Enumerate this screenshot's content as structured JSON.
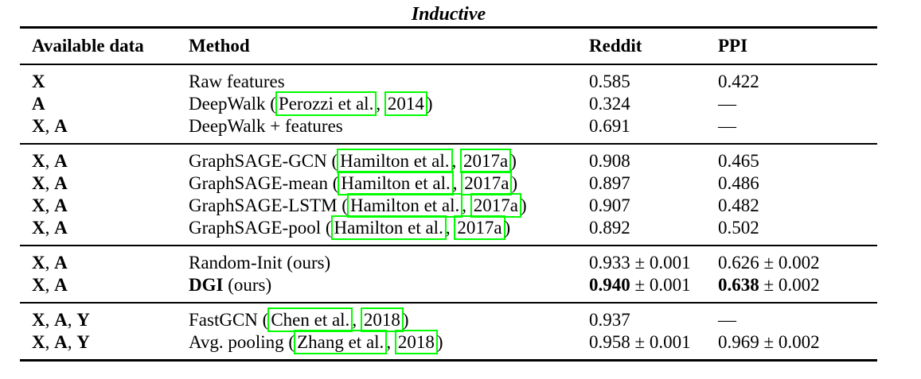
{
  "title": "Inductive",
  "colors": {
    "citation_box": "#00ff00",
    "rule": "#000000"
  },
  "header": {
    "columns": [
      "Available data",
      "Method",
      "Reddit",
      "PPI"
    ]
  },
  "groups": [
    {
      "rows": [
        {
          "cells": [
            {
              "segs": [
                {
                  "t": "bold",
                  "v": "X"
                }
              ]
            },
            {
              "segs": [
                {
                  "t": "text",
                  "v": "Raw features"
                }
              ]
            },
            {
              "segs": [
                {
                  "t": "text",
                  "v": "0.585"
                }
              ]
            },
            {
              "segs": [
                {
                  "t": "text",
                  "v": "0.422"
                }
              ]
            }
          ]
        },
        {
          "cells": [
            {
              "segs": [
                {
                  "t": "bold",
                  "v": "A"
                }
              ]
            },
            {
              "segs": [
                {
                  "t": "text",
                  "v": "DeepWalk ("
                },
                {
                  "t": "cite",
                  "v": "Perozzi et al."
                },
                {
                  "t": "text",
                  "v": ", "
                },
                {
                  "t": "cite",
                  "v": "2014"
                },
                {
                  "t": "text",
                  "v": ")"
                }
              ]
            },
            {
              "segs": [
                {
                  "t": "text",
                  "v": "0.324"
                }
              ]
            },
            {
              "segs": [
                {
                  "t": "text",
                  "v": "—"
                }
              ]
            }
          ]
        },
        {
          "cells": [
            {
              "segs": [
                {
                  "t": "bold",
                  "v": "X"
                },
                {
                  "t": "text",
                  "v": ", "
                },
                {
                  "t": "bold",
                  "v": "A"
                }
              ]
            },
            {
              "segs": [
                {
                  "t": "text",
                  "v": "DeepWalk + features"
                }
              ]
            },
            {
              "segs": [
                {
                  "t": "text",
                  "v": "0.691"
                }
              ]
            },
            {
              "segs": [
                {
                  "t": "text",
                  "v": "—"
                }
              ]
            }
          ]
        }
      ]
    },
    {
      "rows": [
        {
          "cells": [
            {
              "segs": [
                {
                  "t": "bold",
                  "v": "X"
                },
                {
                  "t": "text",
                  "v": ", "
                },
                {
                  "t": "bold",
                  "v": "A"
                }
              ]
            },
            {
              "segs": [
                {
                  "t": "text",
                  "v": "GraphSAGE-GCN ("
                },
                {
                  "t": "cite",
                  "v": "Hamilton et al."
                },
                {
                  "t": "text",
                  "v": ", "
                },
                {
                  "t": "cite",
                  "v": "2017a"
                },
                {
                  "t": "text",
                  "v": ")"
                }
              ]
            },
            {
              "segs": [
                {
                  "t": "text",
                  "v": "0.908"
                }
              ]
            },
            {
              "segs": [
                {
                  "t": "text",
                  "v": "0.465"
                }
              ]
            }
          ]
        },
        {
          "cells": [
            {
              "segs": [
                {
                  "t": "bold",
                  "v": "X"
                },
                {
                  "t": "text",
                  "v": ", "
                },
                {
                  "t": "bold",
                  "v": "A"
                }
              ]
            },
            {
              "segs": [
                {
                  "t": "text",
                  "v": "GraphSAGE-mean ("
                },
                {
                  "t": "cite",
                  "v": "Hamilton et al."
                },
                {
                  "t": "text",
                  "v": ", "
                },
                {
                  "t": "cite",
                  "v": "2017a"
                },
                {
                  "t": "text",
                  "v": ")"
                }
              ]
            },
            {
              "segs": [
                {
                  "t": "text",
                  "v": "0.897"
                }
              ]
            },
            {
              "segs": [
                {
                  "t": "text",
                  "v": "0.486"
                }
              ]
            }
          ]
        },
        {
          "cells": [
            {
              "segs": [
                {
                  "t": "bold",
                  "v": "X"
                },
                {
                  "t": "text",
                  "v": ", "
                },
                {
                  "t": "bold",
                  "v": "A"
                }
              ]
            },
            {
              "segs": [
                {
                  "t": "text",
                  "v": "GraphSAGE-LSTM ("
                },
                {
                  "t": "cite",
                  "v": "Hamilton et al."
                },
                {
                  "t": "text",
                  "v": ", "
                },
                {
                  "t": "cite",
                  "v": "2017a"
                },
                {
                  "t": "text",
                  "v": ")"
                }
              ]
            },
            {
              "segs": [
                {
                  "t": "text",
                  "v": "0.907"
                }
              ]
            },
            {
              "segs": [
                {
                  "t": "text",
                  "v": "0.482"
                }
              ]
            }
          ]
        },
        {
          "cells": [
            {
              "segs": [
                {
                  "t": "bold",
                  "v": "X"
                },
                {
                  "t": "text",
                  "v": ", "
                },
                {
                  "t": "bold",
                  "v": "A"
                }
              ]
            },
            {
              "segs": [
                {
                  "t": "text",
                  "v": "GraphSAGE-pool ("
                },
                {
                  "t": "cite",
                  "v": "Hamilton et al."
                },
                {
                  "t": "text",
                  "v": ", "
                },
                {
                  "t": "cite",
                  "v": "2017a"
                },
                {
                  "t": "text",
                  "v": ")"
                }
              ]
            },
            {
              "segs": [
                {
                  "t": "text",
                  "v": "0.892"
                }
              ]
            },
            {
              "segs": [
                {
                  "t": "text",
                  "v": "0.502"
                }
              ]
            }
          ]
        }
      ]
    },
    {
      "rows": [
        {
          "cells": [
            {
              "segs": [
                {
                  "t": "bold",
                  "v": "X"
                },
                {
                  "t": "text",
                  "v": ", "
                },
                {
                  "t": "bold",
                  "v": "A"
                }
              ]
            },
            {
              "segs": [
                {
                  "t": "text",
                  "v": "Random-Init (ours)"
                }
              ]
            },
            {
              "segs": [
                {
                  "t": "text",
                  "v": "0.933 ± 0.001"
                }
              ]
            },
            {
              "segs": [
                {
                  "t": "text",
                  "v": "0.626 ± 0.002"
                }
              ]
            }
          ]
        },
        {
          "cells": [
            {
              "segs": [
                {
                  "t": "bold",
                  "v": "X"
                },
                {
                  "t": "text",
                  "v": ", "
                },
                {
                  "t": "bold",
                  "v": "A"
                }
              ]
            },
            {
              "segs": [
                {
                  "t": "bold",
                  "v": "DGI"
                },
                {
                  "t": "text",
                  "v": " (ours)"
                }
              ]
            },
            {
              "segs": [
                {
                  "t": "bold",
                  "v": "0.940"
                },
                {
                  "t": "text",
                  "v": " ± 0.001"
                }
              ]
            },
            {
              "segs": [
                {
                  "t": "bold",
                  "v": "0.638"
                },
                {
                  "t": "text",
                  "v": " ± 0.002"
                }
              ]
            }
          ]
        }
      ]
    },
    {
      "rows": [
        {
          "cells": [
            {
              "segs": [
                {
                  "t": "bold",
                  "v": "X"
                },
                {
                  "t": "text",
                  "v": ", "
                },
                {
                  "t": "bold",
                  "v": "A"
                },
                {
                  "t": "text",
                  "v": ", "
                },
                {
                  "t": "bold",
                  "v": "Y"
                }
              ]
            },
            {
              "segs": [
                {
                  "t": "text",
                  "v": "FastGCN ("
                },
                {
                  "t": "cite",
                  "v": "Chen et al."
                },
                {
                  "t": "text",
                  "v": ", "
                },
                {
                  "t": "cite",
                  "v": "2018"
                },
                {
                  "t": "text",
                  "v": ")"
                }
              ]
            },
            {
              "segs": [
                {
                  "t": "text",
                  "v": "0.937"
                }
              ]
            },
            {
              "segs": [
                {
                  "t": "text",
                  "v": "—"
                }
              ]
            }
          ]
        },
        {
          "cells": [
            {
              "segs": [
                {
                  "t": "bold",
                  "v": "X"
                },
                {
                  "t": "text",
                  "v": ", "
                },
                {
                  "t": "bold",
                  "v": "A"
                },
                {
                  "t": "text",
                  "v": ", "
                },
                {
                  "t": "bold",
                  "v": "Y"
                }
              ]
            },
            {
              "segs": [
                {
                  "t": "text",
                  "v": "Avg. pooling ("
                },
                {
                  "t": "cite",
                  "v": "Zhang et al."
                },
                {
                  "t": "text",
                  "v": ", "
                },
                {
                  "t": "cite",
                  "v": "2018"
                },
                {
                  "t": "text",
                  "v": ")"
                }
              ]
            },
            {
              "segs": [
                {
                  "t": "text",
                  "v": "0.958 ± 0.001"
                }
              ]
            },
            {
              "segs": [
                {
                  "t": "text",
                  "v": "0.969 ± 0.002"
                }
              ]
            }
          ]
        }
      ]
    }
  ]
}
